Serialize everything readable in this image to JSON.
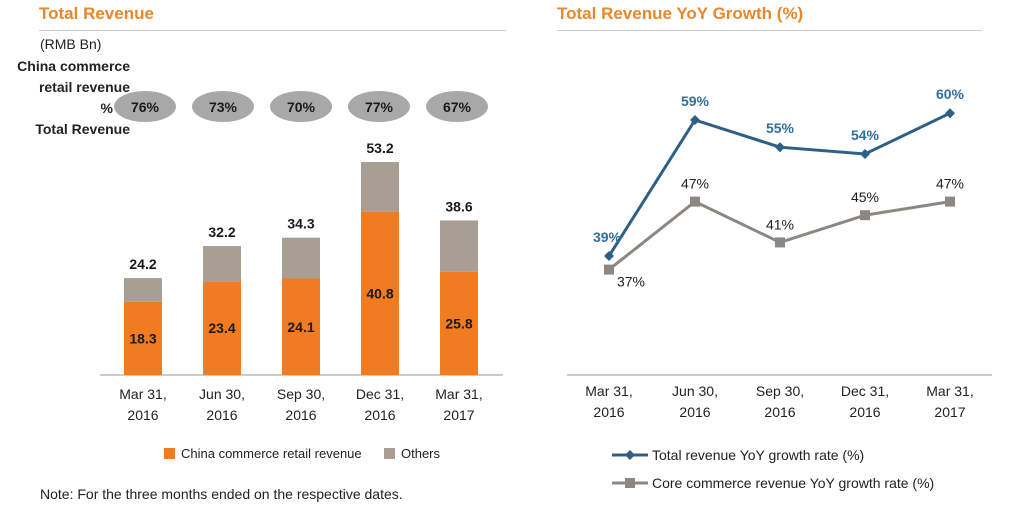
{
  "left_panel": {
    "title": "Total Revenue",
    "unit": "(RMB Bn)",
    "share_label_lines": [
      "China commerce",
      "retail revenue",
      "% of",
      "Total Revenue"
    ],
    "share_pct": [
      "76%",
      "73%",
      "70%",
      "77%",
      "67%"
    ],
    "legend": [
      {
        "label": "China commerce retail revenue",
        "color": "#f07b21"
      },
      {
        "label": "Others",
        "color": "#a89e93"
      }
    ]
  },
  "right_panel": {
    "title": "Total Revenue YoY Growth  (%)",
    "legend": [
      {
        "label": "Total revenue YoY growth rate (%)",
        "color": "#2e5f86"
      },
      {
        "label": "Core commerce revenue YoY growth rate (%)",
        "color": "#8c8781"
      }
    ]
  },
  "note": "Note: For the three months ended on the respective dates.",
  "chart_data": [
    {
      "type": "bar",
      "stacked": true,
      "title": "Total Revenue",
      "categories": [
        [
          "Mar 31,",
          "2016"
        ],
        [
          "Jun 30,",
          "2016"
        ],
        [
          "Sep 30,",
          "2016"
        ],
        [
          "Dec 31,",
          "2016"
        ],
        [
          "Mar 31,",
          "2017"
        ]
      ],
      "series": [
        {
          "name": "China commerce retail revenue",
          "values": [
            18.3,
            23.4,
            24.1,
            40.8,
            25.8
          ],
          "color": "#f07b21"
        },
        {
          "name": "Others",
          "values": [
            5.9,
            8.8,
            10.2,
            12.4,
            12.8
          ],
          "color": "#a89e93"
        }
      ],
      "series_labels": [
        "18.3",
        "23.4",
        "24.1",
        "40.8",
        "25.8"
      ],
      "totals": [
        24.2,
        32.2,
        34.3,
        53.2,
        38.6
      ],
      "total_labels": [
        "24.2",
        "32.2",
        "34.3",
        "53.2",
        "38.6"
      ],
      "ylim": [
        0,
        53.2
      ],
      "grid": false,
      "legend_position": "bottom"
    },
    {
      "type": "line",
      "title": "Total Revenue YoY Growth  (%)",
      "categories": [
        [
          "Mar 31,",
          "2016"
        ],
        [
          "Jun 30,",
          "2016"
        ],
        [
          "Sep 30,",
          "2016"
        ],
        [
          "Dec 31,",
          "2016"
        ],
        [
          "Mar 31,",
          "2017"
        ]
      ],
      "series": [
        {
          "name": "Total revenue YoY growth rate (%)",
          "values": [
            39,
            59,
            55,
            54,
            60
          ],
          "labels": [
            "39%",
            "59%",
            "55%",
            "54%",
            "60%"
          ],
          "color": "#2e5f86",
          "marker": "diamond"
        },
        {
          "name": "Core commerce revenue YoY growth rate (%)",
          "values": [
            37,
            47,
            41,
            45,
            47
          ],
          "labels": [
            "37%",
            "47%",
            "41%",
            "45%",
            "47%"
          ],
          "color": "#8c8781",
          "marker": "square"
        }
      ],
      "ylim": [
        30,
        65
      ],
      "grid": false,
      "legend_position": "bottom"
    }
  ]
}
